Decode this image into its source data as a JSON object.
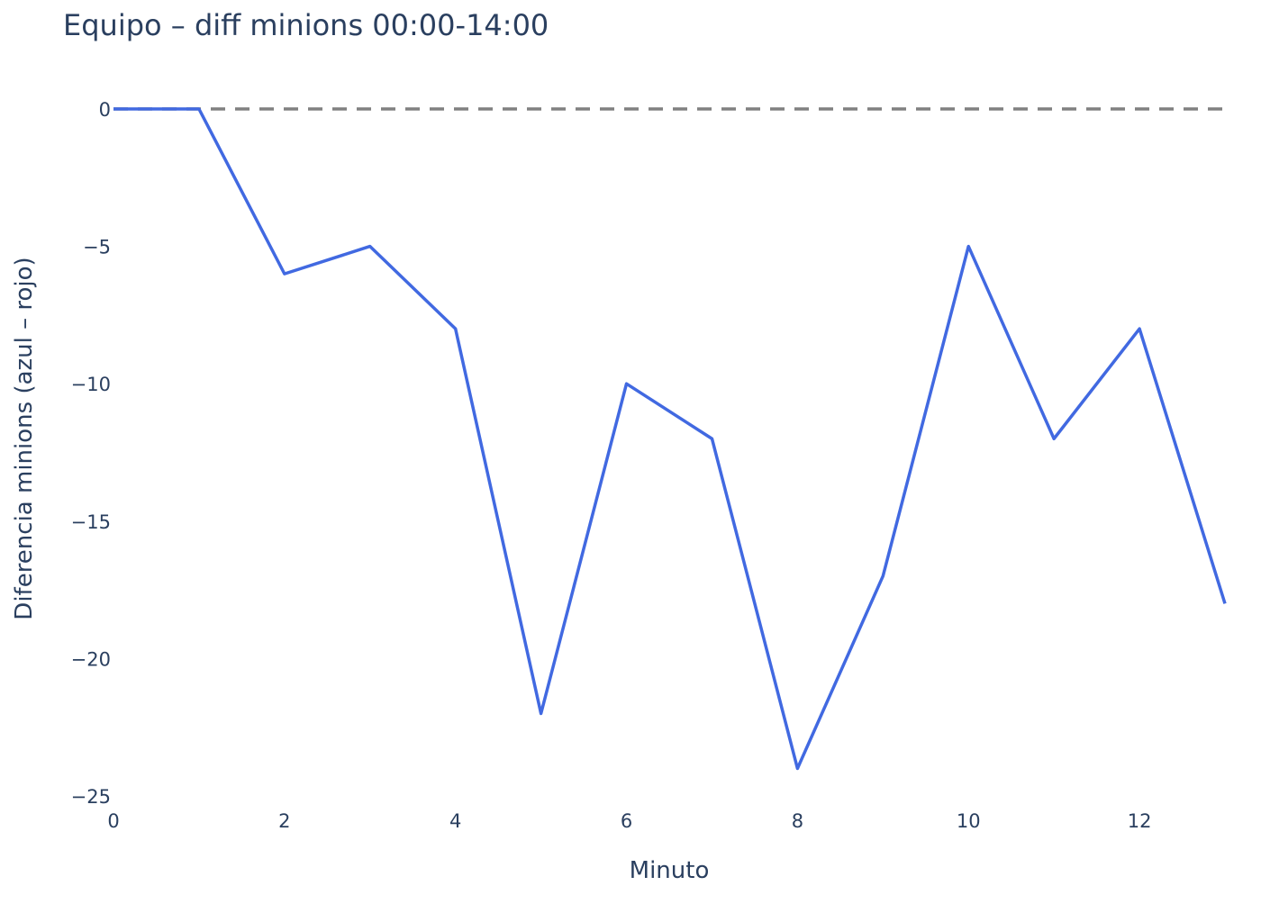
{
  "chart_data": {
    "type": "line",
    "title": "Equipo – diff minions 00:00-14:00",
    "xlabel": "Minuto",
    "ylabel": "Diferencia minions (azul – rojo)",
    "xlim": [
      0,
      13
    ],
    "ylim": [
      -25,
      0
    ],
    "x_ticks": [
      0,
      2,
      4,
      6,
      8,
      10,
      12
    ],
    "x_tick_labels": [
      "0",
      "2",
      "4",
      "6",
      "8",
      "10",
      "12"
    ],
    "y_ticks": [
      0,
      -5,
      -10,
      -15,
      -20,
      -25
    ],
    "y_tick_labels": [
      "0",
      "−5",
      "−10",
      "−15",
      "−20",
      "−25"
    ],
    "grid": false,
    "series": [
      {
        "color": "#4169E1",
        "x": [
          0,
          1,
          2,
          3,
          4,
          5,
          6,
          7,
          8,
          9,
          10,
          11,
          12,
          13
        ],
        "y": [
          0,
          0,
          -6,
          -5,
          -8,
          -22,
          -10,
          -12,
          -24,
          -17,
          -5,
          -12,
          -8,
          -18
        ]
      }
    ],
    "reference_line": {
      "y": 0,
      "style": "dashed",
      "color": "#808080"
    }
  }
}
